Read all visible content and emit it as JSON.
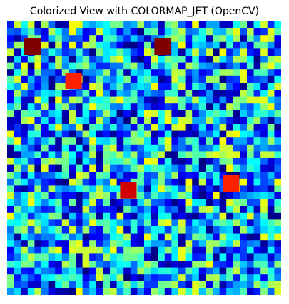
{
  "window": {
    "title": "Colorized View with COLORMAP_JET (OpenCV)"
  },
  "chart_data": {
    "type": "heatmap",
    "title": "Colorized View with COLORMAP_JET (OpenCV)",
    "colormap": "jet",
    "axes": "off",
    "grid": false,
    "rows": 40,
    "cols": 40,
    "value_range": [
      0,
      255
    ],
    "background_value_range": [
      0,
      160
    ],
    "seed": 7,
    "hotspots": [
      {
        "row": 3,
        "col": 3,
        "value": 255
      },
      {
        "row": 3,
        "col": 22,
        "value": 255
      },
      {
        "row": 8,
        "col": 9,
        "value": 215
      },
      {
        "row": 24,
        "col": 17,
        "value": 235
      },
      {
        "row": 23,
        "col": 32,
        "value": 215
      }
    ]
  }
}
